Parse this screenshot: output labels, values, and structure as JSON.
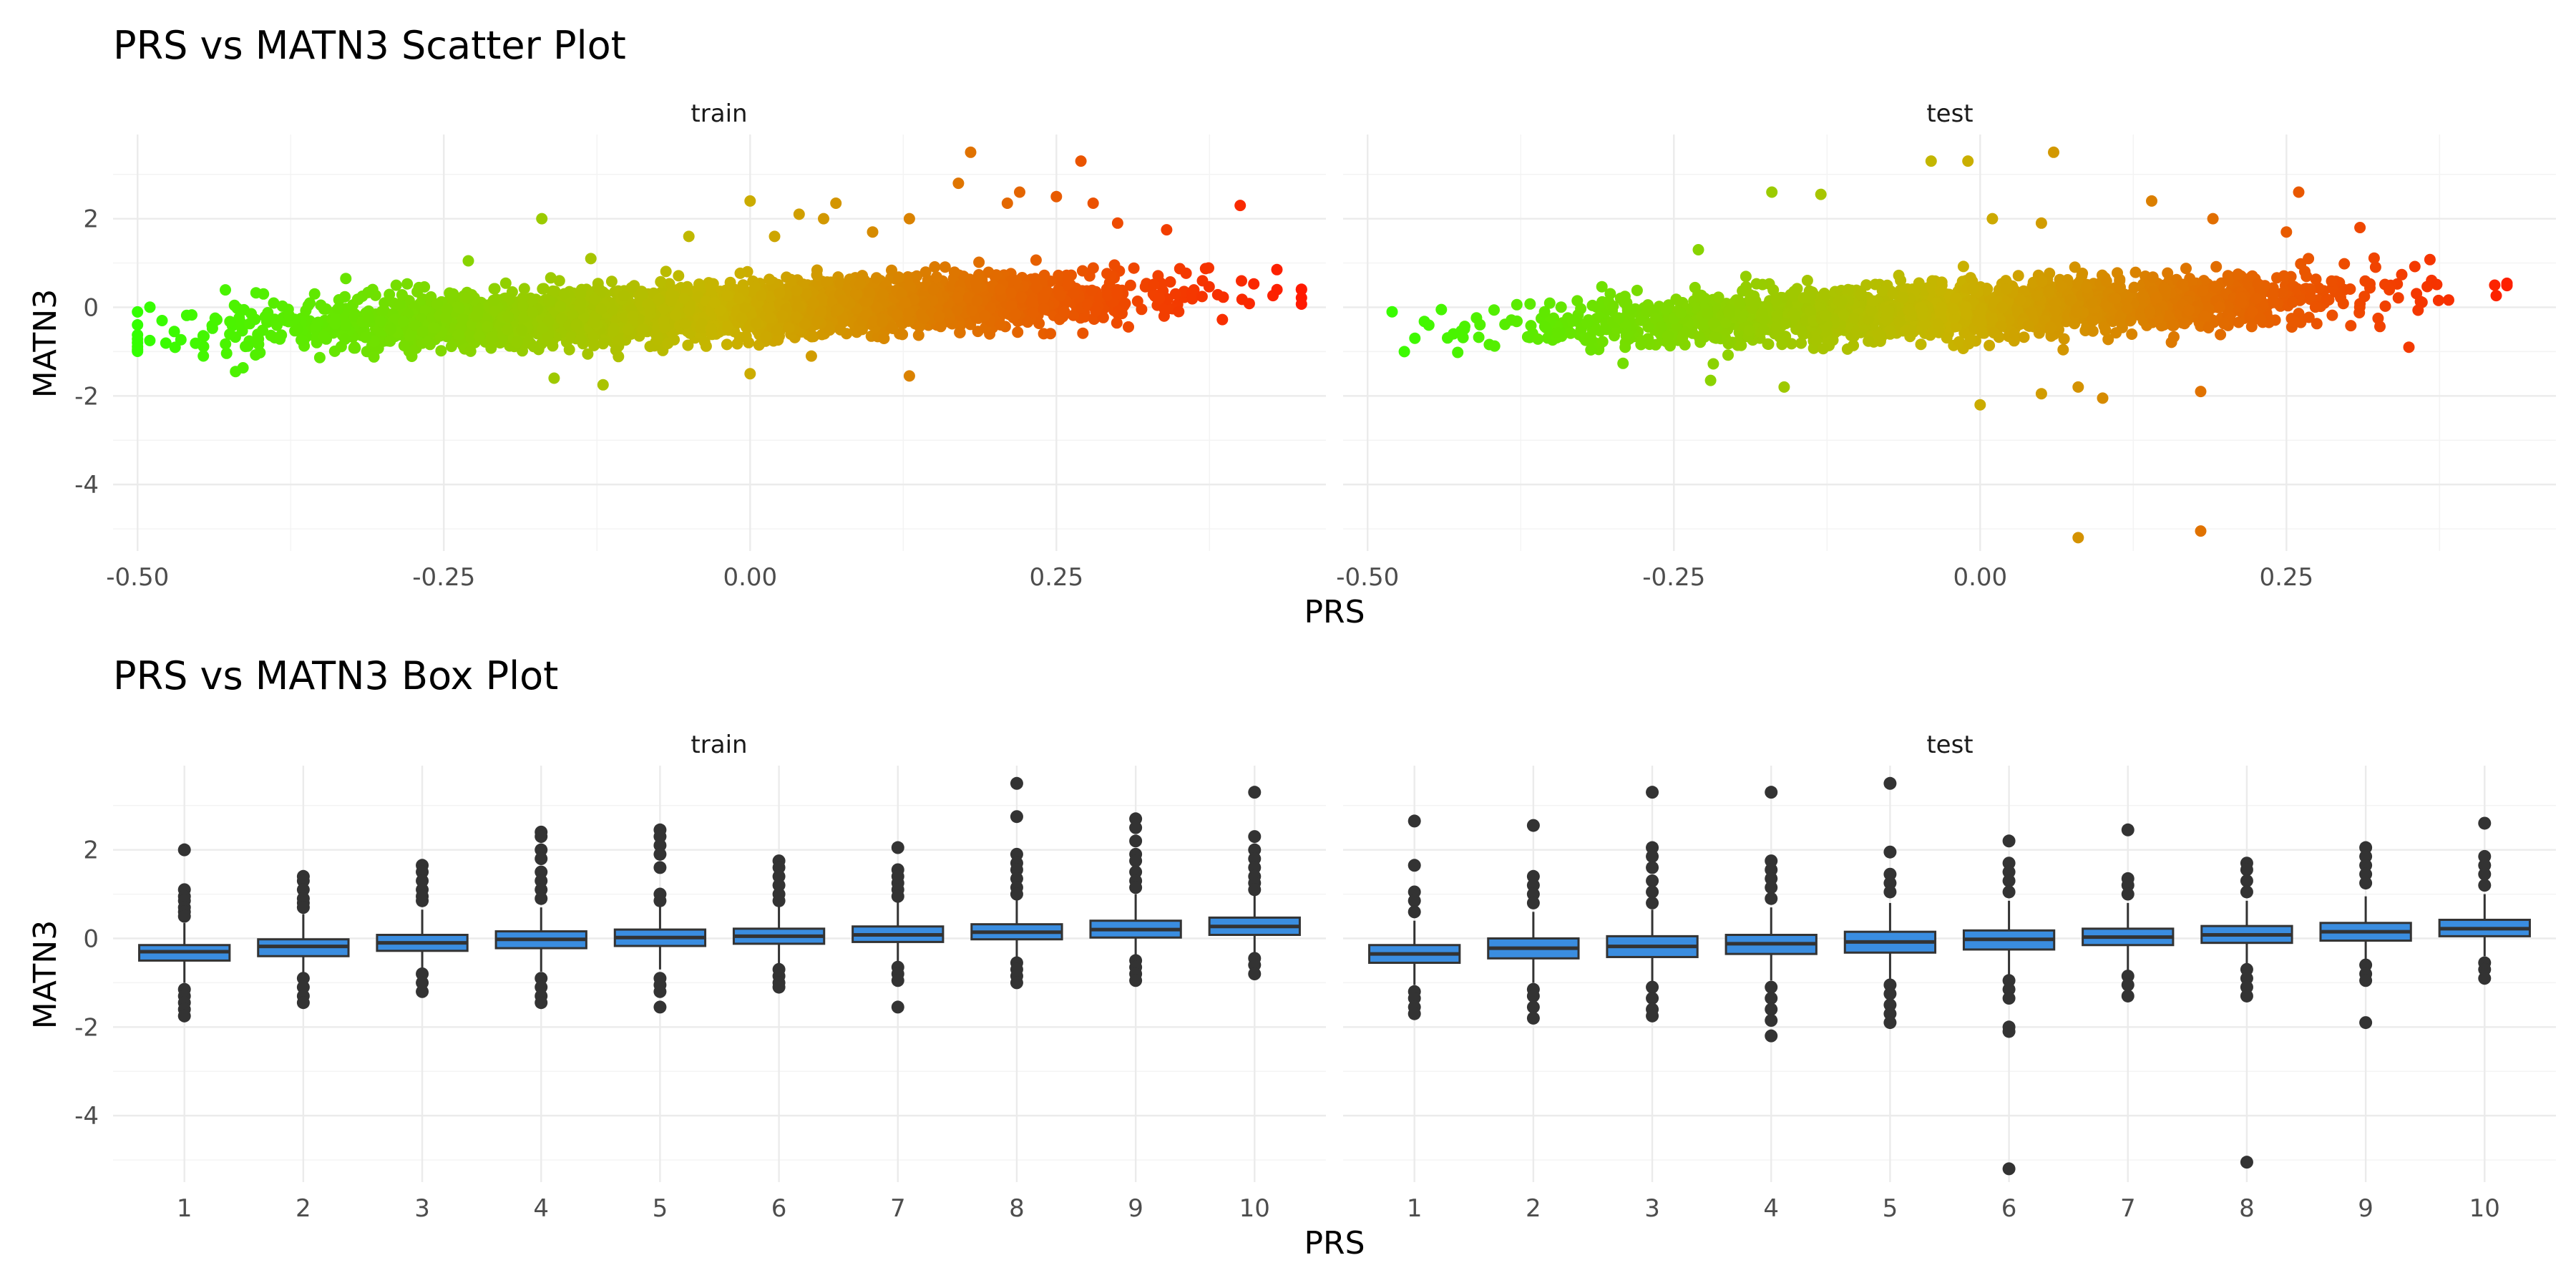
{
  "chart_data": [
    {
      "type": "scatter",
      "title": "PRS vs MATN3 Scatter Plot",
      "xlabel": "PRS",
      "ylabel": "MATN3",
      "xlim": [
        -0.52,
        0.47
      ],
      "ylim": [
        -5.5,
        3.9
      ],
      "x_ticks": [
        -0.5,
        -0.25,
        0.0,
        0.25
      ],
      "x_tick_labels": [
        "-0.50",
        "-0.25",
        "0.00",
        "0.25"
      ],
      "y_ticks": [
        -4,
        -2,
        0,
        2
      ],
      "y_tick_labels": [
        "-4",
        "-2",
        "0",
        "2"
      ],
      "color_scale": {
        "low": "#33ff00",
        "mid": "#c8b400",
        "high": "#ff1a00",
        "by": "PRS"
      },
      "trend": {
        "slope": 1.0,
        "intercept": -0.05,
        "sd": 0.3
      },
      "facets": [
        {
          "label": "train",
          "points_note": "dense cloud of several thousand points",
          "n_points": 3200,
          "x_range": [
            -0.5,
            0.45
          ],
          "outliers": [
            {
              "x": -0.5,
              "y": -0.95
            },
            {
              "x": -0.49,
              "y": -0.75
            },
            {
              "x": -0.48,
              "y": -0.3
            },
            {
              "x": -0.42,
              "y": -1.45
            },
            {
              "x": -0.33,
              "y": 0.65
            },
            {
              "x": -0.23,
              "y": 1.05
            },
            {
              "x": -0.17,
              "y": 2.0
            },
            {
              "x": -0.16,
              "y": -1.6
            },
            {
              "x": -0.12,
              "y": -1.75
            },
            {
              "x": -0.13,
              "y": 1.1
            },
            {
              "x": -0.05,
              "y": 1.6
            },
            {
              "x": 0.0,
              "y": 2.4
            },
            {
              "x": 0.02,
              "y": 1.6
            },
            {
              "x": 0.04,
              "y": 2.1
            },
            {
              "x": 0.06,
              "y": 2.0
            },
            {
              "x": 0.07,
              "y": 2.35
            },
            {
              "x": 0.1,
              "y": 1.7
            },
            {
              "x": 0.13,
              "y": 2.0
            },
            {
              "x": 0.17,
              "y": 2.8
            },
            {
              "x": 0.18,
              "y": 3.5
            },
            {
              "x": 0.21,
              "y": 2.35
            },
            {
              "x": 0.22,
              "y": 2.6
            },
            {
              "x": 0.25,
              "y": 2.5
            },
            {
              "x": 0.27,
              "y": 3.3
            },
            {
              "x": 0.28,
              "y": 2.35
            },
            {
              "x": 0.3,
              "y": 1.9
            },
            {
              "x": 0.34,
              "y": 1.75
            },
            {
              "x": 0.4,
              "y": 2.3
            },
            {
              "x": 0.45,
              "y": 0.4
            },
            {
              "x": 0.43,
              "y": 0.85
            },
            {
              "x": 0.13,
              "y": -1.55
            },
            {
              "x": 0.0,
              "y": -1.5
            },
            {
              "x": 0.05,
              "y": -1.1
            }
          ]
        },
        {
          "label": "test",
          "points_note": "dense cloud of a few thousand points",
          "n_points": 2200,
          "x_range": [
            -0.48,
            0.43
          ],
          "outliers": [
            {
              "x": -0.48,
              "y": -0.1
            },
            {
              "x": -0.47,
              "y": -1.0
            },
            {
              "x": -0.43,
              "y": -0.6
            },
            {
              "x": -0.17,
              "y": 2.6
            },
            {
              "x": -0.13,
              "y": 2.55
            },
            {
              "x": -0.23,
              "y": 1.3
            },
            {
              "x": -0.16,
              "y": -1.8
            },
            {
              "x": -0.22,
              "y": -1.65
            },
            {
              "x": -0.04,
              "y": 3.3
            },
            {
              "x": -0.01,
              "y": 3.3
            },
            {
              "x": 0.01,
              "y": 2.0
            },
            {
              "x": 0.05,
              "y": 1.9
            },
            {
              "x": 0.06,
              "y": 3.5
            },
            {
              "x": 0.14,
              "y": 2.4
            },
            {
              "x": 0.19,
              "y": 2.0
            },
            {
              "x": 0.26,
              "y": 2.6
            },
            {
              "x": 0.25,
              "y": 1.7
            },
            {
              "x": 0.31,
              "y": 1.8
            },
            {
              "x": 0.0,
              "y": -2.2
            },
            {
              "x": 0.05,
              "y": -1.95
            },
            {
              "x": 0.1,
              "y": -2.05
            },
            {
              "x": 0.08,
              "y": -1.8
            },
            {
              "x": 0.18,
              "y": -1.9
            },
            {
              "x": 0.08,
              "y": -5.2
            },
            {
              "x": 0.18,
              "y": -5.05
            },
            {
              "x": 0.35,
              "y": -0.9
            },
            {
              "x": 0.42,
              "y": 0.5
            }
          ]
        }
      ]
    },
    {
      "type": "box",
      "title": "PRS vs MATN3 Box Plot",
      "xlabel": "PRS",
      "ylabel": "MATN3",
      "categories": [
        "1",
        "2",
        "3",
        "4",
        "5",
        "6",
        "7",
        "8",
        "9",
        "10"
      ],
      "ylim": [
        -5.5,
        3.9
      ],
      "y_ticks": [
        -4,
        -2,
        0,
        2
      ],
      "y_tick_labels": [
        "-4",
        "-2",
        "0",
        "2"
      ],
      "box_fill": "#3a8de0",
      "box_line": "#333333",
      "facets": [
        {
          "label": "train",
          "boxes": [
            {
              "q1": -0.5,
              "median": -0.3,
              "q3": -0.15,
              "low": -1.0,
              "high": 0.35,
              "outliers": [
                2.0,
                1.1,
                0.95,
                0.85,
                0.7,
                0.6,
                0.5,
                -1.15,
                -1.3,
                -1.45,
                -1.6,
                -1.75
              ]
            },
            {
              "q1": -0.4,
              "median": -0.18,
              "q3": -0.02,
              "low": -0.85,
              "high": 0.55,
              "outliers": [
                1.4,
                1.3,
                1.1,
                0.9,
                0.8,
                0.7,
                -0.9,
                -1.1,
                -1.3,
                -1.45
              ]
            },
            {
              "q1": -0.28,
              "median": -0.1,
              "q3": 0.08,
              "low": -0.75,
              "high": 0.65,
              "outliers": [
                1.65,
                1.5,
                1.3,
                1.1,
                0.95,
                0.85,
                -0.8,
                -1.0,
                -1.2
              ]
            },
            {
              "q1": -0.22,
              "median": -0.02,
              "q3": 0.16,
              "low": -0.75,
              "high": 0.7,
              "outliers": [
                2.4,
                2.3,
                2.0,
                1.8,
                1.5,
                1.3,
                1.1,
                0.9,
                -0.9,
                -1.1,
                -1.3,
                -1.45
              ]
            },
            {
              "q1": -0.17,
              "median": 0.02,
              "q3": 0.2,
              "low": -0.7,
              "high": 0.75,
              "outliers": [
                2.45,
                2.3,
                2.1,
                1.9,
                1.6,
                1.0,
                0.85,
                -0.9,
                -1.05,
                -1.2,
                -1.55
              ]
            },
            {
              "q1": -0.12,
              "median": 0.05,
              "q3": 0.22,
              "low": -0.65,
              "high": 0.75,
              "outliers": [
                1.75,
                1.6,
                1.4,
                1.2,
                1.0,
                0.85,
                -0.7,
                -0.85,
                -1.0,
                -1.1
              ]
            },
            {
              "q1": -0.08,
              "median": 0.08,
              "q3": 0.27,
              "low": -0.6,
              "high": 0.85,
              "outliers": [
                2.05,
                1.55,
                1.4,
                1.25,
                1.1,
                0.95,
                -0.65,
                -0.8,
                -0.95,
                -1.55
              ]
            },
            {
              "q1": -0.02,
              "median": 0.14,
              "q3": 0.32,
              "low": -0.5,
              "high": 0.9,
              "outliers": [
                3.5,
                2.75,
                1.9,
                1.7,
                1.55,
                1.35,
                1.15,
                1.0,
                -0.55,
                -0.7,
                -0.85,
                -1.0
              ]
            },
            {
              "q1": 0.02,
              "median": 0.2,
              "q3": 0.4,
              "low": -0.45,
              "high": 1.0,
              "outliers": [
                2.7,
                2.5,
                2.2,
                1.9,
                1.75,
                1.5,
                1.3,
                1.15,
                -0.5,
                -0.65,
                -0.8,
                -0.95
              ]
            },
            {
              "q1": 0.08,
              "median": 0.27,
              "q3": 0.47,
              "low": -0.35,
              "high": 1.05,
              "outliers": [
                3.3,
                2.3,
                2.0,
                1.8,
                1.6,
                1.4,
                1.25,
                1.1,
                -0.45,
                -0.6,
                -0.8
              ]
            }
          ]
        },
        {
          "label": "test",
          "boxes": [
            {
              "q1": -0.55,
              "median": -0.35,
              "q3": -0.15,
              "low": -1.05,
              "high": 0.4,
              "outliers": [
                2.65,
                1.65,
                1.05,
                0.85,
                0.6,
                -1.2,
                -1.35,
                -1.55,
                -1.7
              ]
            },
            {
              "q1": -0.45,
              "median": -0.22,
              "q3": 0.0,
              "low": -1.0,
              "high": 0.6,
              "outliers": [
                2.55,
                1.4,
                1.2,
                1.0,
                0.8,
                -1.15,
                -1.3,
                -1.55,
                -1.8
              ]
            },
            {
              "q1": -0.42,
              "median": -0.18,
              "q3": 0.05,
              "low": -1.0,
              "high": 0.65,
              "outliers": [
                3.3,
                2.05,
                1.85,
                1.6,
                1.3,
                1.05,
                0.8,
                -1.1,
                -1.35,
                -1.6,
                -1.75
              ]
            },
            {
              "q1": -0.35,
              "median": -0.12,
              "q3": 0.08,
              "low": -0.95,
              "high": 0.7,
              "outliers": [
                3.3,
                1.75,
                1.55,
                1.35,
                1.15,
                0.9,
                -1.1,
                -1.35,
                -1.6,
                -1.85,
                -2.2
              ]
            },
            {
              "q1": -0.32,
              "median": -0.08,
              "q3": 0.15,
              "low": -0.95,
              "high": 0.8,
              "outliers": [
                3.5,
                1.95,
                1.45,
                1.25,
                1.05,
                -1.05,
                -1.25,
                -1.5,
                -1.7,
                -1.9
              ]
            },
            {
              "q1": -0.25,
              "median": -0.02,
              "q3": 0.18,
              "low": -0.85,
              "high": 0.85,
              "outliers": [
                2.2,
                1.7,
                1.5,
                1.3,
                1.05,
                -0.95,
                -1.15,
                -1.35,
                -2.0,
                -2.1,
                -5.2
              ]
            },
            {
              "q1": -0.15,
              "median": 0.03,
              "q3": 0.22,
              "low": -0.75,
              "high": 0.8,
              "outliers": [
                2.45,
                1.35,
                1.2,
                1.0,
                -0.85,
                -1.05,
                -1.3
              ]
            },
            {
              "q1": -0.1,
              "median": 0.08,
              "q3": 0.28,
              "low": -0.6,
              "high": 0.85,
              "outliers": [
                1.7,
                1.55,
                1.3,
                1.05,
                -0.7,
                -0.9,
                -1.1,
                -1.3,
                -5.05
              ]
            },
            {
              "q1": -0.05,
              "median": 0.15,
              "q3": 0.35,
              "low": -0.5,
              "high": 0.95,
              "outliers": [
                2.05,
                1.85,
                1.65,
                1.45,
                1.25,
                -0.6,
                -0.8,
                -0.95,
                -1.9
              ]
            },
            {
              "q1": 0.05,
              "median": 0.22,
              "q3": 0.42,
              "low": -0.4,
              "high": 1.0,
              "outliers": [
                2.6,
                1.85,
                1.65,
                1.45,
                1.2,
                -0.55,
                -0.7,
                -0.9
              ]
            }
          ]
        }
      ]
    }
  ]
}
